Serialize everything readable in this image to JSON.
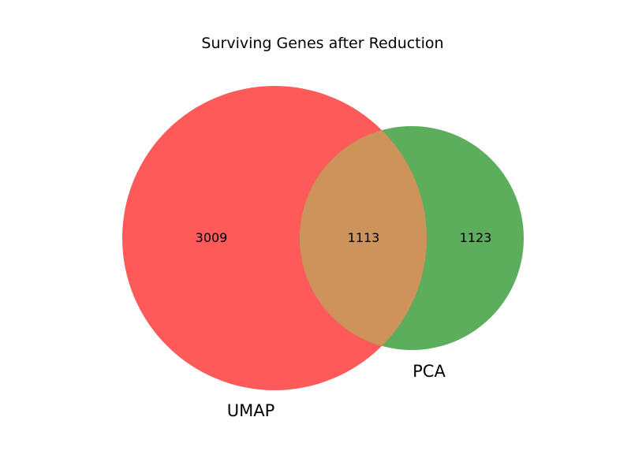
{
  "title": "Surviving Genes after Reduction",
  "sets": [
    {
      "label": "UMAP",
      "color": "#ff5a5a"
    },
    {
      "label": "PCA",
      "color": "#5cad5c"
    }
  ],
  "overlap_color": "#cd935a",
  "regions": {
    "only_first": "3009",
    "both": "1113",
    "only_second": "1123"
  },
  "chart_data": {
    "type": "venn",
    "title": "Surviving Genes after Reduction",
    "sets": [
      "UMAP",
      "PCA"
    ],
    "subsets": {
      "UMAP_only": 3009,
      "UMAP_and_PCA": 1113,
      "PCA_only": 1123
    }
  }
}
